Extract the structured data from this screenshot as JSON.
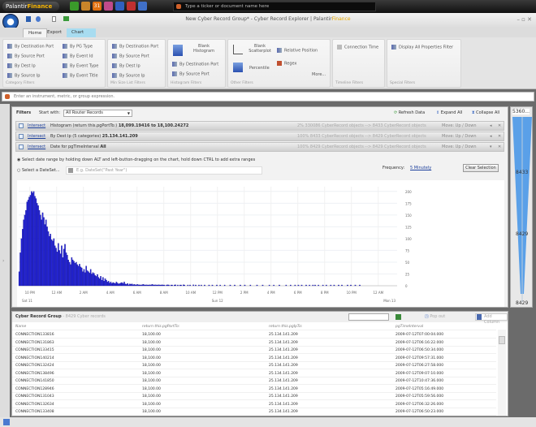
{
  "topbar": {
    "logo_a": "Palantir",
    "logo_b": "Finance",
    "ticker_placeholder": "Type a ticker or document name here",
    "app_icons": [
      "green-chart",
      "orange-doc",
      "calendar-31",
      "pink-folder",
      "blue-person",
      "red-pen",
      "blue-badge"
    ],
    "calendar_text": "31"
  },
  "titlebar": {
    "title": "New Cyber Record Group* - Cyber Record Explorer | ",
    "brand_a": "Palantir",
    "brand_b": "Finance",
    "controls": "– ▫ ✕"
  },
  "tabs": [
    {
      "label": "Home"
    },
    {
      "label": "Export"
    },
    {
      "label": "Chart"
    }
  ],
  "ribbon": {
    "category": {
      "label": "Category Filters",
      "items": [
        "By Destination Port",
        "By Source Port",
        "By Dest Ip",
        "By Source Ip",
        "By PG Type",
        "By Event Id",
        "By Event Type",
        "By Event Title"
      ]
    },
    "minsize": {
      "label": "Min Size List Filters",
      "items": [
        "By Destination Port",
        "By Source Port",
        "By Dest Ip",
        "By Source Ip"
      ]
    },
    "histogram": {
      "label": "Histogram Filters",
      "items": [
        "Blank Histogram",
        "By Destination Port",
        "By Source Port"
      ]
    },
    "other": {
      "label": "Other Filters",
      "items": [
        "Blank Scatterplot",
        "Percentile",
        "Relative Position",
        "Regex",
        "More..."
      ]
    },
    "timeline": {
      "label": "Timeline Filters",
      "items": [
        "Connection Time"
      ]
    },
    "special": {
      "label": "Special Filters",
      "items": [
        "Display All Properties Filter"
      ]
    }
  },
  "command": {
    "placeholder": "Enter an instrument, metric, or group expression."
  },
  "filters": {
    "title": "Filters",
    "start_with_label": "Start with:",
    "start_with_value": "All Router Records",
    "refresh": "Refresh Data",
    "expand": "Expand All",
    "collapse": "Collapse All",
    "rows": [
      {
        "op": "Intersect",
        "desc": "Histogram (return this.pgPortTo:)",
        "value": "18,099.19416 to 18,100.24272",
        "stats": "2%  330086 CyberRecord objects --> 8433 CyberRecord objects",
        "move": "Move:  Up / Down"
      },
      {
        "op": "Intersect",
        "desc": "By Dest Ip (5 categories)",
        "value": "25.134.141.209",
        "stats": "100%  8433 CyberRecord objects --> 8429 CyberRecord objects",
        "move": "Move:  Up / Down"
      },
      {
        "op": "Intersect",
        "desc": "Date for pgTimeInterval",
        "value": "All",
        "stats": "100%  8429 CyberRecord objects --> 8429 CyberRecord objects",
        "move": "Move:  Up / Down"
      }
    ],
    "date_option_1": "Select date range by holding down ALT and left-button-dragging on the chart, hold down CTRL to add extra ranges",
    "date_option_2": "Select a DateSet...",
    "dateset_placeholder": "E.g. DateSet(\"Past Year\")",
    "frequency_label": "Frequency:",
    "frequency_value": "5 Minutely",
    "clear": "Clear Selection"
  },
  "slider": {
    "top": "5360...",
    "mid1": "8433",
    "mid2": "8429",
    "bottom": "8429"
  },
  "chart_data": {
    "type": "bar",
    "bin_start": "2009-07-11T21:10",
    "bin_minutes": 5,
    "ylim": [
      0,
      210
    ],
    "yticks": [
      "0",
      "25",
      "50",
      "75",
      "100",
      "125",
      "150",
      "175",
      "200"
    ],
    "xticks": [
      "10 PM",
      "12 AM",
      "2 AM",
      "4 AM",
      "6 AM",
      "8 AM",
      "10 AM",
      "12 PM",
      "2 PM",
      "4 PM",
      "6 PM",
      "8 PM",
      "10 PM",
      "12 AM"
    ],
    "day_labels": [
      "Sat 11",
      "Sun 12",
      "Mon 13"
    ],
    "bar_color": "#2323d6",
    "grid": true,
    "values": [
      30,
      70,
      100,
      120,
      140,
      150,
      160,
      178,
      182,
      188,
      192,
      200,
      197,
      200,
      190,
      185,
      175,
      170,
      160,
      150,
      140,
      155,
      145,
      130,
      140,
      125,
      115,
      105,
      110,
      98,
      95,
      100,
      85,
      80,
      72,
      90,
      75,
      68,
      85,
      60,
      78,
      88,
      70,
      65,
      55,
      50,
      45,
      60,
      55,
      52,
      48,
      50,
      45,
      42,
      46,
      40,
      38,
      30,
      35,
      28,
      42,
      32,
      30,
      27,
      35,
      25,
      28,
      26,
      22,
      20,
      24,
      18,
      15,
      20,
      12,
      18,
      10,
      15,
      12,
      8,
      10,
      6,
      8,
      5,
      7,
      6,
      5,
      8,
      6,
      4,
      5,
      6,
      7,
      5,
      8,
      4,
      3,
      5,
      2,
      4,
      3,
      4,
      2,
      3,
      2,
      2,
      3,
      1,
      2,
      1,
      2,
      3,
      2,
      1,
      2,
      1,
      1,
      2,
      1,
      3,
      2,
      1,
      2,
      1,
      1,
      2,
      1,
      1,
      2,
      1,
      1,
      0,
      1,
      2,
      1,
      0,
      1,
      1,
      0,
      1,
      2,
      0,
      1,
      0,
      1,
      1,
      0,
      2,
      1,
      0,
      0,
      1,
      0,
      1,
      0,
      0,
      2,
      0,
      1,
      0,
      0,
      1,
      0,
      1,
      0,
      0,
      1,
      0,
      0,
      0,
      1,
      0,
      0,
      1,
      0,
      0,
      0,
      1,
      0,
      0,
      1,
      0,
      0,
      0,
      1,
      0,
      0,
      0,
      0,
      1,
      0,
      0,
      0,
      1,
      0,
      0,
      0,
      0,
      1,
      0,
      0,
      0,
      1,
      0,
      0,
      0,
      0,
      1,
      0,
      0,
      0,
      0,
      0,
      1,
      0,
      0,
      0,
      0,
      1,
      0,
      0,
      0,
      0,
      0,
      1,
      0,
      0,
      0,
      1,
      0,
      0,
      0,
      0,
      1,
      0,
      0,
      0,
      0,
      0,
      1,
      0,
      0,
      0,
      1,
      0,
      0,
      0,
      1,
      0,
      0,
      1,
      0,
      0,
      1,
      0,
      0,
      0,
      1,
      0,
      0,
      1,
      0,
      0,
      1,
      0,
      1,
      0,
      0,
      1,
      0,
      0,
      0,
      1,
      0,
      0,
      1,
      0,
      0,
      0,
      1,
      0,
      0,
      1,
      0,
      0,
      0,
      1,
      0,
      0,
      1,
      0,
      0,
      0,
      0,
      1,
      0,
      0,
      1,
      0,
      0,
      0,
      1,
      0,
      0,
      0,
      1
    ]
  },
  "table": {
    "title": "Cyber Record Group",
    "subtitle": " - 8429 Cyber records",
    "popout": "Pop out",
    "add_column_placeholder": "Add Column",
    "columns": [
      "Name",
      "return this.pgPortTo:",
      "return this.pgIpTo:",
      "pgTimeInterval"
    ],
    "rows": [
      [
        "CONNECTION133816",
        "18,100.00",
        "25.134.141.209",
        "2009-07-12T07:00:04.000"
      ],
      [
        "CONNECTION131863",
        "18,100.00",
        "25.134.141.209",
        "2009-07-12T06:16:22.000"
      ],
      [
        "CONNECTION133415",
        "18,100.00",
        "25.134.141.209",
        "2009-07-12T06:50:34.000"
      ],
      [
        "CONNECTION140214",
        "18,100.00",
        "25.134.141.209",
        "2009-07-12T09:57:31.000"
      ],
      [
        "CONNECTION132424",
        "18,100.00",
        "25.134.141.209",
        "2009-07-12T06:27:58.000"
      ],
      [
        "CONNECTION138496",
        "18,100.00",
        "25.134.141.209",
        "2009-07-12T09:07:10.000"
      ],
      [
        "CONNECTION141850",
        "18,100.00",
        "25.134.141.209",
        "2009-07-12T10:47:36.000"
      ],
      [
        "CONNECTION128946",
        "18,100.00",
        "25.134.141.209",
        "2009-07-12T05:16:49.000"
      ],
      [
        "CONNECTION131043",
        "18,100.00",
        "25.134.141.209",
        "2009-07-12T05:59:56.000"
      ],
      [
        "CONNECTION132634",
        "18,100.00",
        "25.134.141.209",
        "2009-07-12T06:32:26.000"
      ],
      [
        "CONNECTION133408",
        "18,100.00",
        "25.134.141.209",
        "2009-07-12T06:50:23.000"
      ]
    ]
  }
}
